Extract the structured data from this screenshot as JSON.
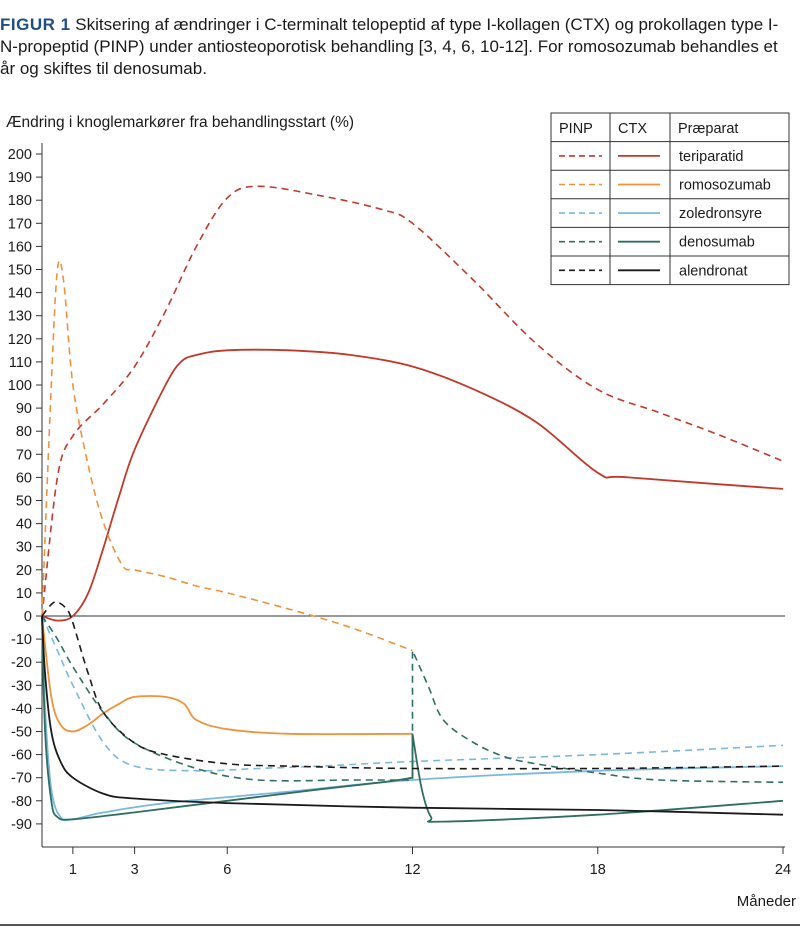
{
  "figure": {
    "label": "FIGUR 1",
    "caption": "Skitsering af ændringer i C-terminalt telopeptid af type I-kollagen (CTX) og prokollagen type I-N-propeptid (PINP) under antiosteoporotisk behandling [3, 4, 6, 10-12]. For romosozumab behandles et år og skiftes til denosumab."
  },
  "chart_data": {
    "type": "line",
    "ylabel": "Ændring i knoglemarkører fra behandlingsstart (%)",
    "xlabel": "Måneder",
    "xlim": [
      0,
      24
    ],
    "ylim": [
      -100,
      200
    ],
    "xticks": [
      1,
      3,
      6,
      12,
      18,
      24
    ],
    "yticks": [
      200,
      190,
      180,
      170,
      160,
      150,
      140,
      130,
      120,
      110,
      100,
      90,
      80,
      70,
      60,
      50,
      40,
      30,
      20,
      10,
      0,
      -10,
      -20,
      -30,
      -40,
      -50,
      -60,
      -70,
      -80,
      -90
    ],
    "legend": {
      "position": "top-right",
      "headers": [
        "PINP",
        "CTX",
        "Præparat"
      ]
    },
    "series": [
      {
        "name": "teriparatid",
        "color": "#c0392b",
        "PINP": [
          [
            0,
            0
          ],
          [
            0.5,
            60
          ],
          [
            1,
            78
          ],
          [
            2,
            92
          ],
          [
            3,
            108
          ],
          [
            4,
            132
          ],
          [
            5,
            160
          ],
          [
            6,
            181
          ],
          [
            7,
            186
          ],
          [
            9,
            182
          ],
          [
            11,
            176
          ],
          [
            12,
            170
          ],
          [
            14,
            145
          ],
          [
            16,
            118
          ],
          [
            18,
            98
          ],
          [
            20,
            88
          ],
          [
            22,
            78
          ],
          [
            24,
            67
          ]
        ],
        "CTX": [
          [
            0,
            0
          ],
          [
            0.5,
            -2
          ],
          [
            1,
            0
          ],
          [
            1.5,
            10
          ],
          [
            2,
            30
          ],
          [
            2.5,
            52
          ],
          [
            3,
            72
          ],
          [
            4,
            100
          ],
          [
            4.5,
            110
          ],
          [
            5,
            113
          ],
          [
            6,
            115
          ],
          [
            8,
            115
          ],
          [
            10,
            113
          ],
          [
            12,
            108
          ],
          [
            14,
            98
          ],
          [
            16,
            84
          ],
          [
            18,
            62
          ],
          [
            19,
            60
          ],
          [
            24,
            55
          ]
        ]
      },
      {
        "name": "romosozumab",
        "color": "#f0923a",
        "PINP": [
          [
            0,
            0
          ],
          [
            0.3,
            100
          ],
          [
            0.5,
            150
          ],
          [
            0.7,
            145
          ],
          [
            1,
            100
          ],
          [
            1.5,
            65
          ],
          [
            2,
            40
          ],
          [
            2.6,
            22
          ],
          [
            3,
            20
          ],
          [
            4,
            17
          ],
          [
            5,
            13
          ],
          [
            6,
            10
          ],
          [
            8,
            3
          ],
          [
            10,
            -5
          ],
          [
            12,
            -15
          ]
        ],
        "CTX": [
          [
            0,
            0
          ],
          [
            0.3,
            -35
          ],
          [
            0.6,
            -47
          ],
          [
            1,
            -50
          ],
          [
            1.5,
            -47
          ],
          [
            2,
            -42
          ],
          [
            2.5,
            -38
          ],
          [
            3,
            -35
          ],
          [
            4,
            -35
          ],
          [
            4.6,
            -38
          ],
          [
            5,
            -45
          ],
          [
            6,
            -49
          ],
          [
            8,
            -51
          ],
          [
            12,
            -51
          ]
        ]
      },
      {
        "name": "zoledronsyre",
        "color": "#7bb8dc",
        "PINP": [
          [
            0,
            0
          ],
          [
            0.5,
            -15
          ],
          [
            1,
            -30
          ],
          [
            2,
            -55
          ],
          [
            3,
            -65
          ],
          [
            5,
            -67
          ],
          [
            7,
            -66
          ],
          [
            9,
            -65
          ],
          [
            12,
            -63
          ],
          [
            18,
            -60
          ],
          [
            24,
            -56
          ]
        ],
        "CTX": [
          [
            0,
            0
          ],
          [
            0.1,
            -40
          ],
          [
            0.3,
            -75
          ],
          [
            0.6,
            -87
          ],
          [
            1,
            -88
          ],
          [
            2,
            -85
          ],
          [
            4,
            -81
          ],
          [
            8,
            -76
          ],
          [
            12,
            -71
          ],
          [
            18,
            -67
          ],
          [
            24,
            -65
          ]
        ]
      },
      {
        "name": "denosumab",
        "color": "#2f6e61",
        "PINP": [
          [
            0,
            0
          ],
          [
            0.5,
            -10
          ],
          [
            1,
            -22
          ],
          [
            2,
            -42
          ],
          [
            3,
            -55
          ],
          [
            5,
            -66
          ],
          [
            7,
            -71
          ],
          [
            10,
            -71
          ],
          [
            12,
            -71
          ],
          [
            12,
            -15
          ],
          [
            12.5,
            -30
          ],
          [
            13,
            -45
          ],
          [
            14,
            -55
          ],
          [
            15,
            -61
          ],
          [
            16,
            -64
          ],
          [
            18,
            -68
          ],
          [
            20,
            -71
          ],
          [
            24,
            -72
          ]
        ],
        "CTX": [
          [
            0,
            0
          ],
          [
            0.1,
            -50
          ],
          [
            0.3,
            -80
          ],
          [
            0.5,
            -87
          ],
          [
            1,
            -88
          ],
          [
            3,
            -85
          ],
          [
            6,
            -80
          ],
          [
            9,
            -75
          ],
          [
            11,
            -72
          ],
          [
            12,
            -70
          ],
          [
            12,
            -51
          ],
          [
            12.3,
            -75
          ],
          [
            12.6,
            -87
          ],
          [
            13,
            -89
          ],
          [
            18,
            -86
          ],
          [
            24,
            -80
          ]
        ]
      },
      {
        "name": "alendronat",
        "color": "#1a1a1a",
        "PINP": [
          [
            0,
            0
          ],
          [
            0.3,
            5
          ],
          [
            0.5,
            6
          ],
          [
            0.8,
            3
          ],
          [
            1,
            -3
          ],
          [
            1.5,
            -25
          ],
          [
            2,
            -42
          ],
          [
            3,
            -55
          ],
          [
            4,
            -60
          ],
          [
            6,
            -64
          ],
          [
            8,
            -65
          ],
          [
            12,
            -66
          ],
          [
            18,
            -66
          ],
          [
            24,
            -65
          ]
        ],
        "CTX": [
          [
            0,
            0
          ],
          [
            0.1,
            -25
          ],
          [
            0.3,
            -50
          ],
          [
            0.6,
            -63
          ],
          [
            1,
            -70
          ],
          [
            2,
            -77
          ],
          [
            3,
            -79
          ],
          [
            6,
            -81
          ],
          [
            12,
            -83
          ],
          [
            18,
            -84
          ],
          [
            24,
            -86
          ]
        ]
      }
    ]
  }
}
